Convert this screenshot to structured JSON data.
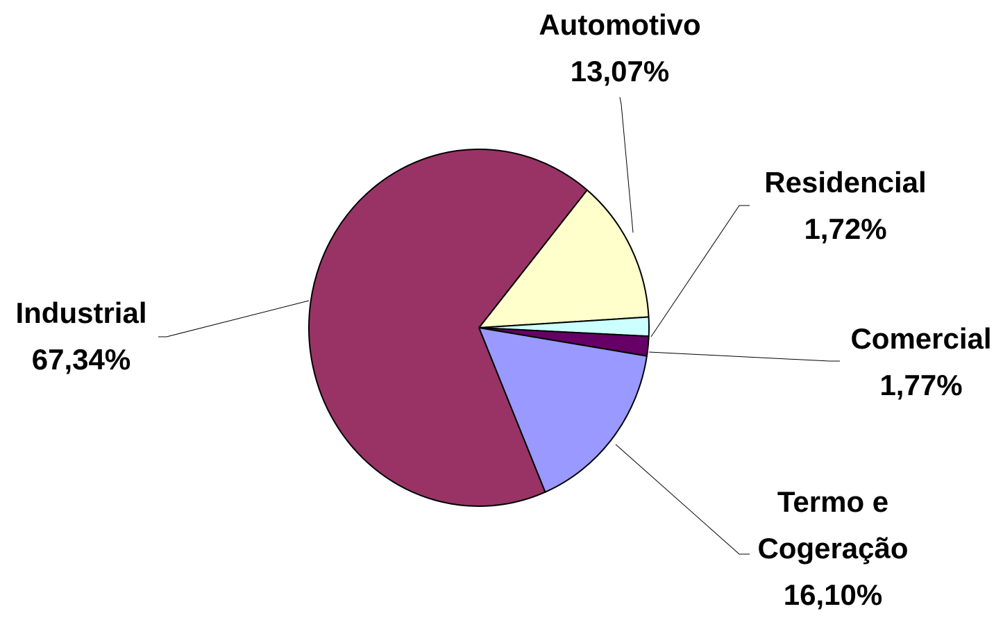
{
  "chart_data": {
    "type": "pie",
    "categories": [
      "Automotivo",
      "Residencial",
      "Comercial",
      "Termo e Cogeração",
      "Industrial"
    ],
    "values": [
      13.07,
      1.72,
      1.77,
      16.1,
      67.34
    ],
    "value_labels": [
      "13,07%",
      "1,72%",
      "1,77%",
      "16,10%",
      "67,34%"
    ],
    "colors": [
      "#ffffcc",
      "#ccffff",
      "#660066",
      "#9999ff",
      "#993366"
    ]
  }
}
